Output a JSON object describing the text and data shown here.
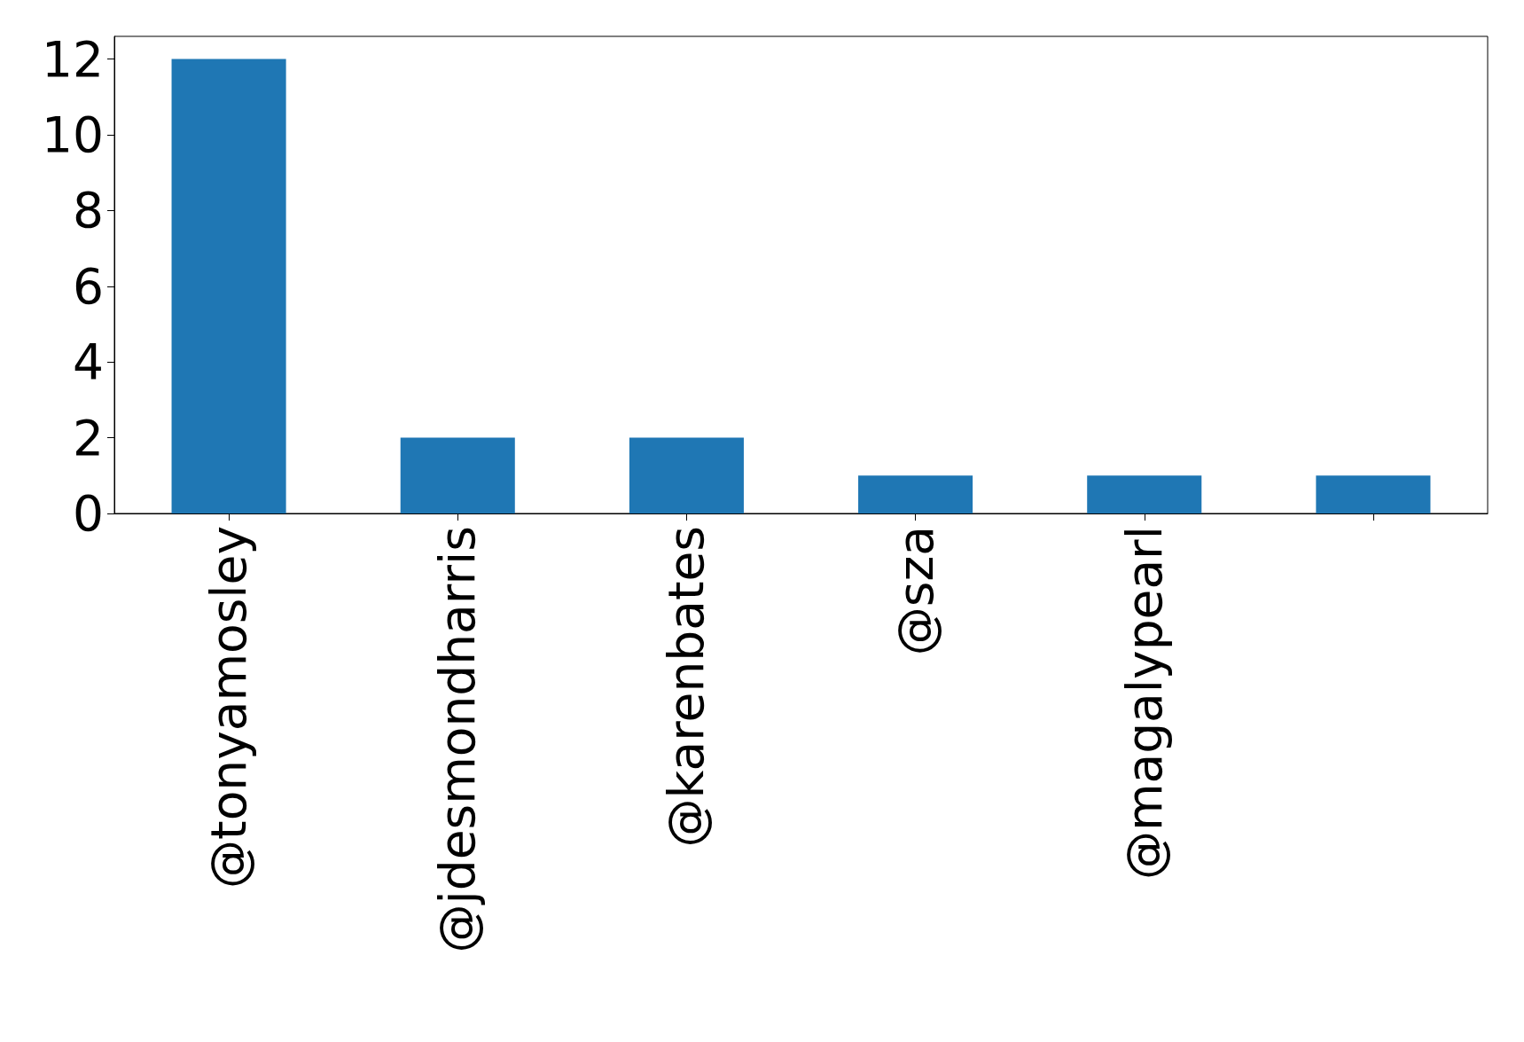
{
  "chart_data": {
    "type": "bar",
    "categories": [
      "@tonyamosley",
      "@jdesmondharris",
      "@karenbates",
      "@sza",
      "@magalypearl",
      null
    ],
    "values": [
      12,
      2,
      2,
      1,
      1,
      1
    ],
    "color": "#1f77b4",
    "ylim": [
      0,
      12.6
    ],
    "yticks": [
      0,
      2,
      4,
      6,
      8,
      10,
      12
    ],
    "grid": false
  }
}
